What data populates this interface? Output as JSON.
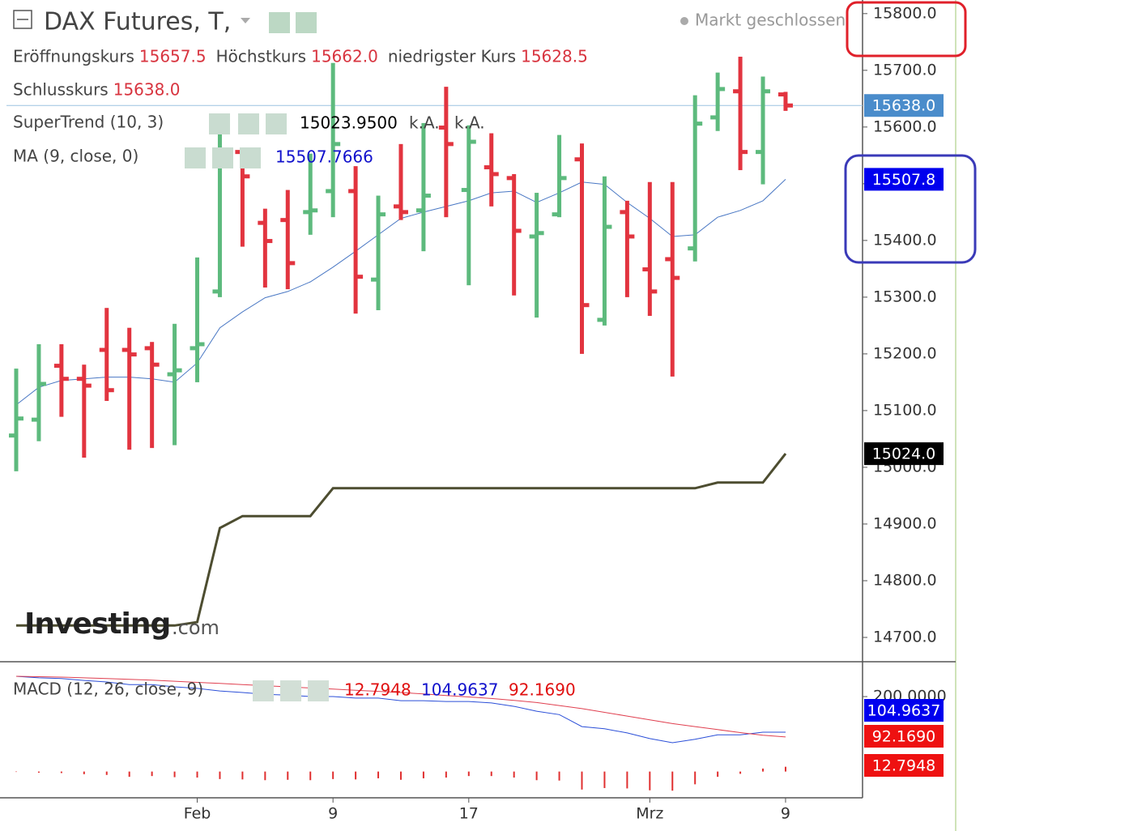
{
  "header": {
    "title": "DAX Futures, T,",
    "status": "Markt geschlossen",
    "ohlc": [
      {
        "label": "Eröffnungskurs",
        "value": "15657.5"
      },
      {
        "label": "Höchstkurs",
        "value": "15662.0"
      },
      {
        "label": "niedrigster Kurs",
        "value": "15628.5"
      },
      {
        "label": "Schlusskurs",
        "value": "15638.0"
      }
    ],
    "supertrend_values": [
      "15023.9500",
      "k.A.",
      "k.A."
    ],
    "ma_value": "15507.7666",
    "watermark": [
      "Investing",
      ".com"
    ]
  },
  "chart_data": [
    {
      "type": "ohlc",
      "categories": [
        null,
        null,
        null,
        null,
        null,
        null,
        null,
        null,
        "Feb",
        null,
        null,
        null,
        null,
        null,
        "9",
        null,
        null,
        null,
        null,
        null,
        "17",
        null,
        null,
        null,
        null,
        null,
        null,
        null,
        "Mrz",
        null,
        null,
        null,
        null,
        null,
        "9"
      ],
      "open": [
        15056,
        15084,
        15179,
        15156,
        15207,
        15207,
        15210,
        15164,
        15210,
        15310,
        15556,
        15431,
        15436,
        15450,
        15487,
        15487,
        15331,
        15460,
        15453,
        15599,
        15489,
        15529,
        15510,
        15407,
        15446,
        15543,
        15260,
        15450,
        15349,
        15367,
        15386,
        15617,
        15663,
        15556,
        15657.5
      ],
      "high": [
        15174,
        15217,
        15217,
        15181,
        15281,
        15246,
        15221,
        15253,
        15370,
        15603,
        15560,
        15456,
        15489,
        15553,
        15713,
        15531,
        15479,
        15570,
        15607,
        15671,
        15603,
        15589,
        15517,
        15484,
        15586,
        15571,
        15513,
        15470,
        15503,
        15503,
        15656,
        15696,
        15724,
        15689,
        15662
      ],
      "low": [
        14993,
        15046,
        15089,
        15017,
        15117,
        15031,
        15034,
        15039,
        15150,
        15300,
        15389,
        15317,
        15314,
        15410,
        15441,
        15271,
        15277,
        15436,
        15381,
        15441,
        15321,
        15460,
        15303,
        15264,
        15441,
        15200,
        15250,
        15300,
        15267,
        15160,
        15363,
        15593,
        15524,
        15499,
        15628.5
      ],
      "close": [
        15086,
        15147,
        15156,
        15144,
        15136,
        15199,
        15181,
        15171,
        15217,
        15560,
        15513,
        15399,
        15360,
        15453,
        15570,
        15336,
        15446,
        15450,
        15479,
        15570,
        15574,
        15517,
        15417,
        15413,
        15510,
        15286,
        15424,
        15407,
        15310,
        15334,
        15606,
        15667,
        15556,
        15663,
        15638
      ],
      "up_color": "#5dba7d",
      "down_color": "#e2343f",
      "last_close_label": "15638.0",
      "last_close_color": "#4a8ccb",
      "series": [
        {
          "name": "SuperTrend (10, 3)",
          "color": "#4d4d30",
          "values": [
            14721,
            14721,
            14721,
            14721,
            14721,
            14721,
            14721,
            14721,
            14727,
            14893,
            14914,
            14914,
            14914,
            14914,
            14963,
            14963,
            14963,
            14963,
            14963,
            14963,
            14963,
            14963,
            14963,
            14963,
            14963,
            14963,
            14963,
            14963,
            14963,
            14963,
            14963,
            14973,
            14973,
            14973,
            15024
          ],
          "badge": "15024.0",
          "badge_color": "#000000"
        },
        {
          "name": "MA (9, close, 0)",
          "color": "#4a78c4",
          "values": [
            15110,
            15141,
            15153,
            15156,
            15159,
            15159,
            15156,
            15150,
            15184,
            15246,
            15274,
            15299,
            15310,
            15327,
            15353,
            15381,
            15410,
            15439,
            15450,
            15460,
            15470,
            15484,
            15487,
            15467,
            15484,
            15503,
            15499,
            15467,
            15439,
            15407,
            15410,
            15441,
            15453,
            15470,
            15507.8
          ],
          "badge": "15507.8",
          "badge_color": "#0000ee"
        }
      ],
      "ylim": [
        14660,
        15824
      ],
      "yticks": [
        {
          "value": 15800,
          "label": "15800.0"
        },
        {
          "value": 15700,
          "label": "15700.0"
        },
        {
          "value": 15600,
          "label": "15600.0"
        },
        {
          "value": 15500,
          "label": "15500.0"
        },
        {
          "value": 15400,
          "label": "15400.0"
        },
        {
          "value": 15300,
          "label": "15300.0"
        },
        {
          "value": 15200,
          "label": "15200.0"
        },
        {
          "value": 15100,
          "label": "15100.0"
        },
        {
          "value": 15000,
          "label": "15000.0"
        },
        {
          "value": 14900,
          "label": "14900.0"
        },
        {
          "value": 14800,
          "label": "14800.0"
        },
        {
          "value": 14700,
          "label": "14700.0"
        }
      ]
    },
    {
      "type": "macd",
      "title": "MACD (12, 26, close, 9)",
      "series": [
        {
          "color": "#2b4fd8",
          "values": [
            254,
            250,
            248,
            243,
            239,
            232,
            232,
            226,
            222,
            215,
            211,
            206,
            204,
            200,
            200,
            196,
            196,
            189,
            189,
            187,
            187,
            183,
            174,
            161,
            152,
            120,
            114,
            103,
            88,
            77,
            86,
            98,
            98,
            105,
            104.9637
          ],
          "badge": "104.9637",
          "badge_color": "#0000ee"
        },
        {
          "color": "#e04050",
          "values": [
            254,
            253,
            252,
            250,
            248,
            246,
            244,
            241,
            238,
            235,
            232,
            229,
            226,
            223,
            220,
            217,
            214,
            211,
            207,
            203,
            199,
            195,
            190,
            184,
            176,
            168,
            158,
            148,
            138,
            128,
            120,
            112,
            104,
            97,
            92.169
          ],
          "badge": "92.1690",
          "badge_color": "#ee1111"
        }
      ],
      "histogram": {
        "color": "#e03030",
        "values": [
          0,
          -3,
          -4,
          -7,
          -9,
          -14,
          -12,
          -15,
          -16,
          -20,
          -21,
          -23,
          -22,
          -23,
          -20,
          -21,
          -18,
          -22,
          -18,
          -16,
          -12,
          -12,
          -16,
          -23,
          -24,
          -48,
          -44,
          -45,
          -50,
          -51,
          -34,
          -14,
          -6,
          8,
          12.7948
        ],
        "badge": "12.7948",
        "badge_color": "#ee1111"
      },
      "ylim": [
        -70,
        293
      ],
      "yticks": [
        {
          "value": 200,
          "label": "200.0000"
        }
      ]
    }
  ]
}
